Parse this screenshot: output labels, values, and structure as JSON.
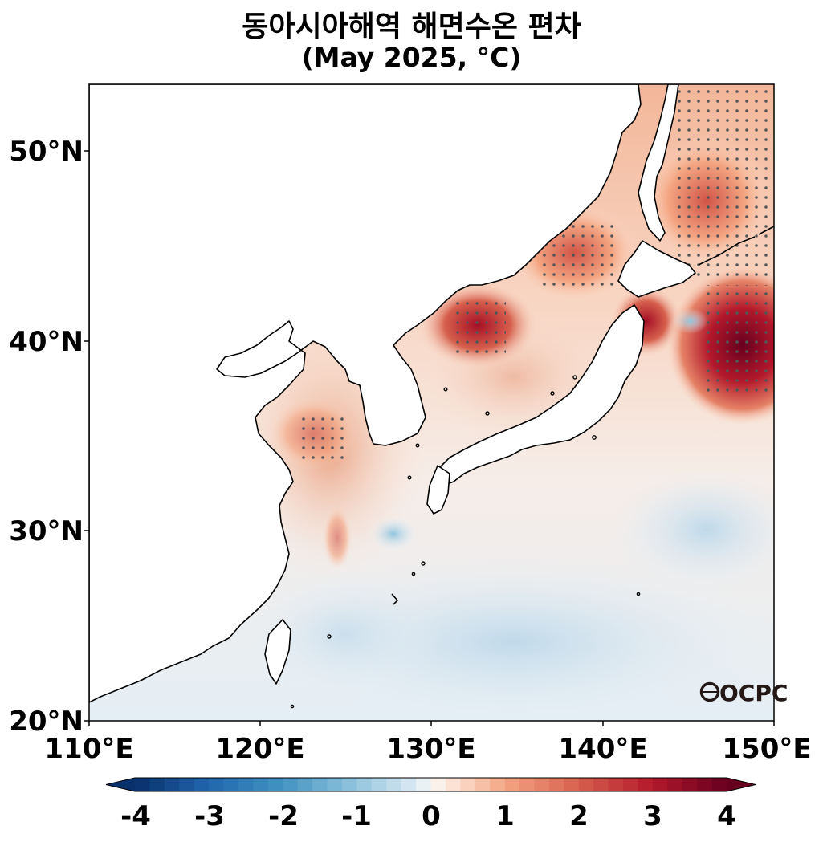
{
  "title_line1": "동아시아해역 해면수온 편차",
  "title_line2": "(May 2025, °C)",
  "map": {
    "lon_range": [
      110,
      150
    ],
    "lat_range": [
      20,
      53.5
    ],
    "lat_ticks": [
      "50°N",
      "40°N",
      "30°N",
      "20°N"
    ],
    "lon_ticks": [
      "110°E",
      "120°E",
      "130°E",
      "140°E",
      "150°E"
    ],
    "logo_text": "OCPC"
  },
  "colorbar": {
    "min": -4,
    "max": 4,
    "step": 0.2,
    "tick_labels": [
      "-4",
      "-3",
      "-2",
      "-1",
      "0",
      "1",
      "2",
      "3",
      "4"
    ],
    "extend": "both",
    "colormap": "RdBu_r"
  },
  "colors": {
    "neg_dark": "#08306b",
    "neg_mid": "#4393c3",
    "neutral": "#f7f7f7",
    "pos_mid": "#f4a582",
    "pos_dark": "#67001f",
    "land": "#ffffff",
    "coast": "#000000",
    "stipple": "#555555"
  }
}
